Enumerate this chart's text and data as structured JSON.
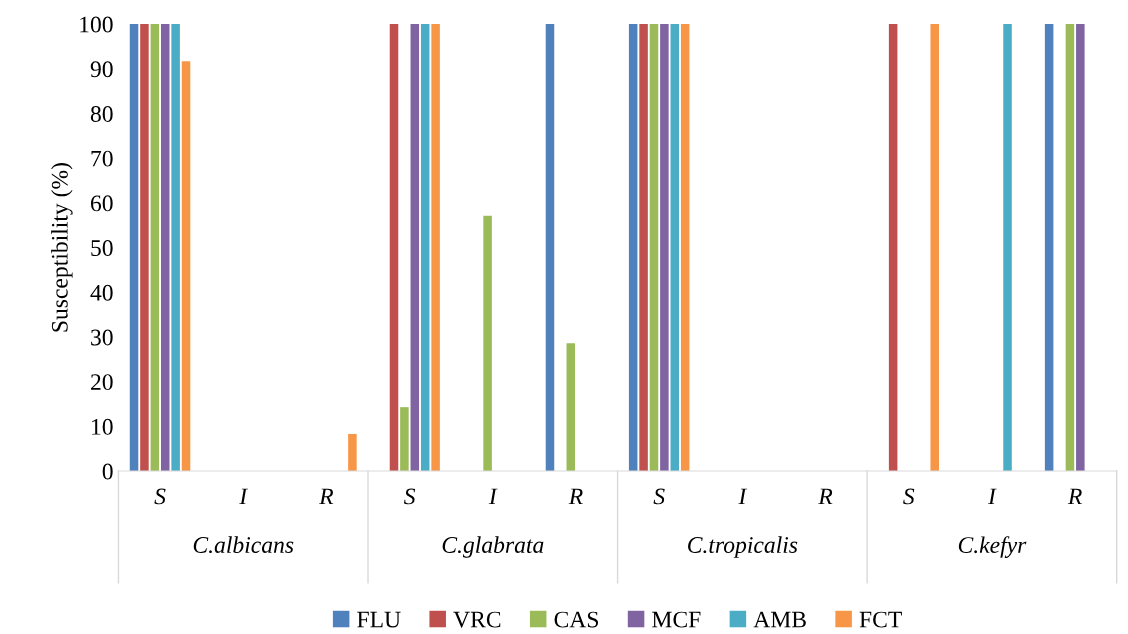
{
  "chart_data": {
    "type": "bar",
    "ylabel": "Susceptibility (%)",
    "categories": [
      "S",
      "I",
      "R",
      "S",
      "I",
      "R",
      "S",
      "I",
      "R",
      "S",
      "I",
      "R"
    ],
    "annotations": [
      "C.albicans",
      "C.glabrata",
      "C.tropicalis",
      "C.kefyr"
    ],
    "series": [
      {
        "name": "FLU",
        "color": "#4f81bd",
        "values": [
          100,
          0,
          0,
          0,
          0,
          100,
          100,
          0,
          0,
          0,
          0,
          100
        ]
      },
      {
        "name": "VRC",
        "color": "#c0504d",
        "values": [
          100,
          0,
          0,
          100,
          0,
          0,
          100,
          0,
          0,
          100,
          0,
          0
        ]
      },
      {
        "name": "CAS",
        "color": "#9bbb59",
        "values": [
          100,
          0,
          0,
          14.3,
          57.1,
          28.6,
          100,
          0,
          0,
          0,
          0,
          100
        ]
      },
      {
        "name": "MCF",
        "color": "#8064a2",
        "values": [
          100,
          0,
          0,
          100,
          0,
          0,
          100,
          0,
          0,
          0,
          0,
          100
        ]
      },
      {
        "name": "AMB",
        "color": "#4bacc6",
        "values": [
          100,
          0,
          0,
          100,
          0,
          0,
          100,
          0,
          0,
          0,
          100,
          0
        ]
      },
      {
        "name": "FCT",
        "color": "#f79646",
        "values": [
          91.7,
          0,
          8.3,
          100,
          0,
          0,
          100,
          0,
          0,
          100,
          0,
          0
        ]
      }
    ],
    "ylim": [
      0,
      100
    ],
    "yticks": [
      0,
      10,
      20,
      30,
      40,
      50,
      60,
      70,
      80,
      90,
      100
    ],
    "grid": false,
    "legend": "bottom"
  }
}
